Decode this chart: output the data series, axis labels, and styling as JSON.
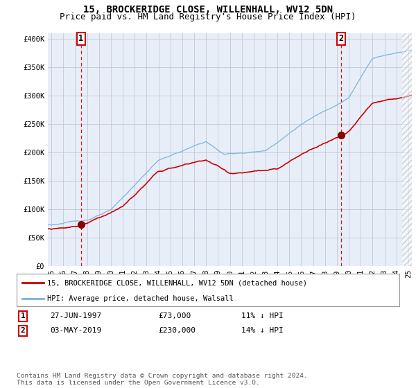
{
  "title": "15, BROCKERIDGE CLOSE, WILLENHALL, WV12 5DN",
  "subtitle": "Price paid vs. HM Land Registry's House Price Index (HPI)",
  "ylabel_ticks": [
    "£0",
    "£50K",
    "£100K",
    "£150K",
    "£200K",
    "£250K",
    "£300K",
    "£350K",
    "£400K"
  ],
  "ytick_values": [
    0,
    50000,
    100000,
    150000,
    200000,
    250000,
    300000,
    350000,
    400000
  ],
  "ylim": [
    0,
    410000
  ],
  "xlim_start": 1994.7,
  "xlim_end": 2025.3,
  "sale1_year": 1997.49,
  "sale1_price": 73000,
  "sale1_label": "1",
  "sale2_year": 2019.34,
  "sale2_price": 230000,
  "sale2_label": "2",
  "hpi_color": "#7ab4d8",
  "price_color": "#cc0000",
  "marker_color": "#8b0000",
  "dashed_color": "#cc0000",
  "background_plot": "#e8eef8",
  "background_fig": "#ffffff",
  "grid_color": "#c0c8d8",
  "hatch_start": 2024.5,
  "legend_line1": "15, BROCKERIDGE CLOSE, WILLENHALL, WV12 5DN (detached house)",
  "legend_line2": "HPI: Average price, detached house, Walsall",
  "table_row1": [
    "1",
    "27-JUN-1997",
    "£73,000",
    "11% ↓ HPI"
  ],
  "table_row2": [
    "2",
    "03-MAY-2019",
    "£230,000",
    "14% ↓ HPI"
  ],
  "footnote": "Contains HM Land Registry data © Crown copyright and database right 2024.\nThis data is licensed under the Open Government Licence v3.0.",
  "title_fontsize": 10,
  "subtitle_fontsize": 9,
  "tick_fontsize": 7.5
}
